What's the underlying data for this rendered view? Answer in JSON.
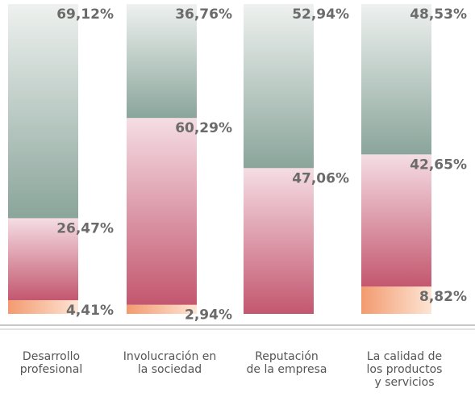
{
  "chart_data": {
    "type": "stacked_bar",
    "categories": [
      "Desarrollo\nprofesional",
      "Involucración en\nla sociedad",
      "Reputación\nde la empresa",
      "La calidad de\nlos productos\ny servicios"
    ],
    "ylim": [
      0,
      100
    ],
    "series": [
      {
        "color": "orange",
        "values": [
          4.41,
          2.94,
          null,
          8.82
        ],
        "value_labels": [
          "4,41%",
          "2,94%",
          null,
          "8,82%"
        ]
      },
      {
        "color": "pink",
        "values": [
          26.47,
          60.29,
          47.06,
          42.65
        ],
        "value_labels": [
          "26,47%",
          "60,29%",
          "47,06%",
          "42,65%"
        ]
      },
      {
        "color": "green",
        "values": [
          69.12,
          36.76,
          52.94,
          48.53
        ],
        "value_labels": [
          "69,12%",
          "36,76%",
          "52,94%",
          "48,53%"
        ]
      }
    ]
  }
}
